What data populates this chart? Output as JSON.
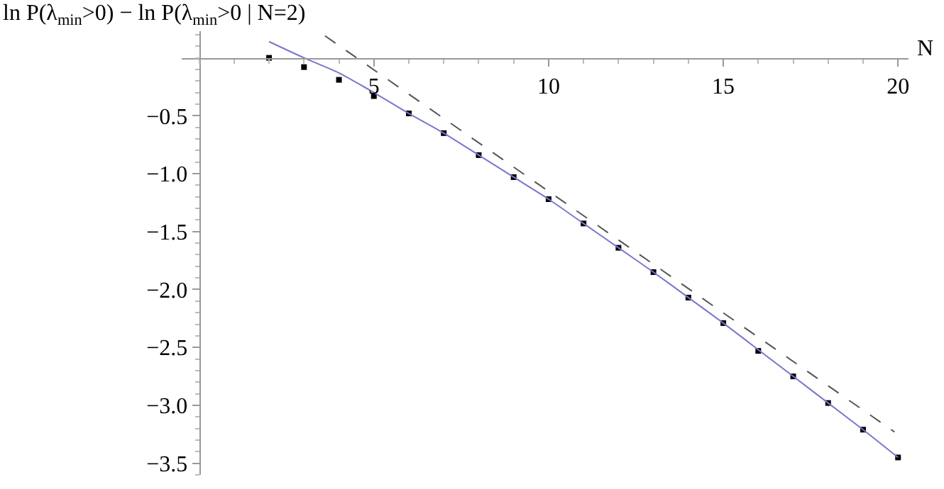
{
  "chart_data": {
    "type": "scatter",
    "ylabel": "ln P(λ$_{min}$>0) − ln P(λ$_{min}$>0 | N=2)",
    "xlabel": "N",
    "x": [
      2,
      3,
      4,
      5,
      6,
      7,
      8,
      9,
      10,
      11,
      12,
      13,
      14,
      15,
      16,
      17,
      18,
      19,
      20
    ],
    "series": [
      {
        "color": "#000000",
        "marker": "square",
        "values": [
          0.0,
          -0.08,
          -0.19,
          -0.33,
          -0.48,
          -0.65,
          -0.84,
          -1.03,
          -1.22,
          -1.43,
          -1.64,
          -1.85,
          -2.07,
          -2.29,
          -2.53,
          -2.75,
          -2.98,
          -3.21,
          -3.45
        ]
      },
      {
        "type": "line",
        "color": "#7777cc",
        "marker": "none",
        "line_style": "solid",
        "values": [
          0.14,
          0.0,
          -0.13,
          -0.3,
          -0.48,
          -0.65,
          -0.84,
          -1.03,
          -1.22,
          -1.43,
          -1.64,
          -1.85,
          -2.07,
          -2.29,
          -2.52,
          -2.75,
          -2.98,
          -3.21,
          -3.45
        ]
      },
      {
        "type": "line",
        "color": "#555555",
        "marker": "none",
        "line_style": "dashed",
        "x": [
          3.6,
          19.9
        ],
        "values": [
          0.19,
          -3.23
        ]
      }
    ],
    "xlim": [
      -0.5,
      20.3
    ],
    "ylim": [
      -3.6,
      0.23
    ],
    "xticks": [
      5,
      10,
      15,
      20
    ],
    "yticks": [
      -0.5,
      {
        "value": -1,
        "label": "−1.0"
      },
      -1.5,
      {
        "value": -2,
        "label": "−2.0"
      },
      -2.5,
      {
        "value": -3,
        "label": "−3.0"
      },
      -3.5
    ],
    "legend": false
  }
}
